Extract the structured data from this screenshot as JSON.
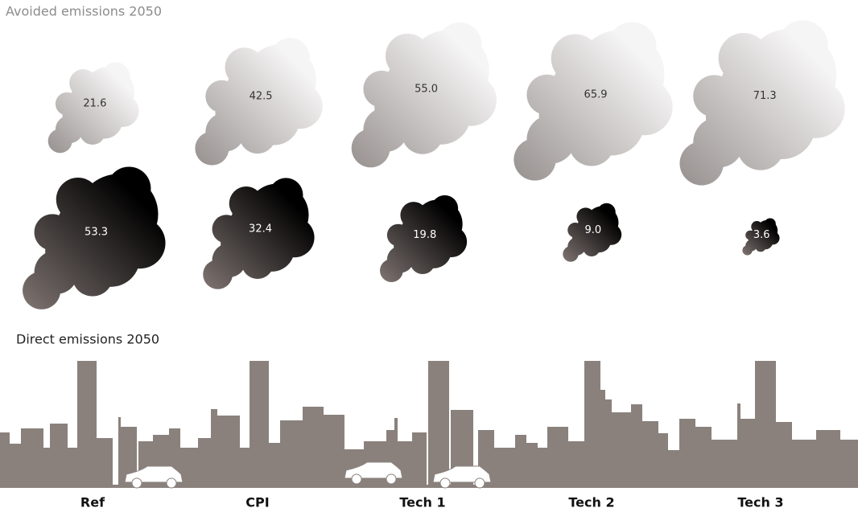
{
  "chart_data": {
    "type": "cloud",
    "categories": [
      "Ref",
      "CPI",
      "Tech 1",
      "Tech 2",
      "Tech 3"
    ],
    "series": [
      {
        "name": "Avoided emissions 2050",
        "color": "#948e8c",
        "values": [
          21.6,
          42.5,
          55.0,
          65.9,
          71.3
        ],
        "value_labels": [
          "21.6",
          "42.5",
          "55.0",
          "65.9",
          "71.3"
        ]
      },
      {
        "name": "Direct emissions 2050",
        "color": "#000000",
        "values": [
          53.3,
          32.4,
          19.8,
          9.0,
          3.6
        ],
        "value_labels": [
          "53.3",
          "32.4",
          "19.8",
          "9.0",
          "3.6"
        ]
      }
    ]
  }
}
